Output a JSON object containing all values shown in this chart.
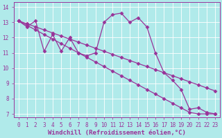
{
  "title": "",
  "xlabel": "Windchill (Refroidissement éolien,°C)",
  "ylabel": "",
  "bg_color": "#b0eaea",
  "line_color": "#993399",
  "grid_color": "#ffffff",
  "xlim": [
    -0.5,
    23.5
  ],
  "ylim": [
    6.8,
    14.3
  ],
  "xticks": [
    0,
    1,
    2,
    3,
    4,
    5,
    6,
    7,
    8,
    9,
    10,
    11,
    12,
    13,
    14,
    15,
    16,
    17,
    18,
    19,
    20,
    21,
    22,
    23
  ],
  "yticks": [
    7,
    8,
    9,
    10,
    11,
    12,
    13,
    14
  ],
  "series": [
    [
      13.1,
      12.7,
      13.1,
      11.1,
      12.2,
      11.1,
      12.0,
      11.0,
      10.8,
      11.0,
      13.0,
      13.5,
      13.6,
      13.0,
      13.3,
      12.7,
      11.0,
      9.7,
      9.2,
      8.6,
      7.3,
      7.4,
      7.1,
      7.0
    ],
    [
      13.1,
      12.8,
      12.5,
      12.2,
      11.9,
      11.6,
      11.3,
      11.0,
      10.7,
      10.4,
      10.1,
      9.8,
      9.5,
      9.2,
      8.9,
      8.6,
      8.3,
      8.0,
      7.7,
      7.4,
      7.1,
      7.0,
      7.0,
      7.0
    ],
    [
      13.1,
      12.9,
      12.7,
      12.5,
      12.3,
      12.1,
      11.9,
      11.7,
      11.5,
      11.3,
      11.1,
      10.9,
      10.7,
      10.5,
      10.3,
      10.1,
      9.9,
      9.7,
      9.5,
      9.3,
      9.1,
      8.9,
      8.7,
      8.5
    ]
  ],
  "marker": "D",
  "markersize": 2.5,
  "linewidth": 0.9,
  "font_color": "#993399",
  "tick_fontsize": 5.5,
  "xlabel_fontsize": 6.5
}
